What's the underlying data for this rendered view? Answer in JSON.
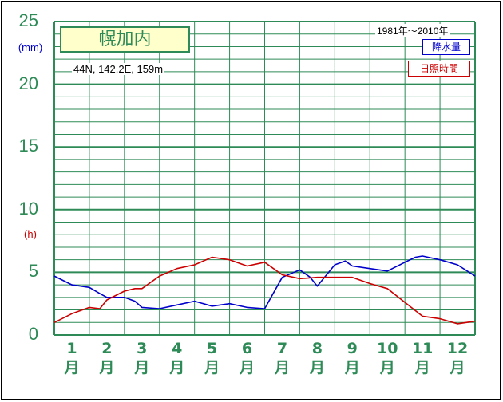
{
  "chart_data": {
    "type": "line",
    "station": "幌加内",
    "location": "44N, 142.2E, 159m",
    "period": "1981年〜2010年",
    "ylim": [
      0,
      25
    ],
    "y_ticks": [
      "0",
      "5",
      "10",
      "15",
      "20",
      "25"
    ],
    "unit_top": "(mm)",
    "unit_mid": "(h)",
    "months": [
      {
        "num": "1",
        "kanji": "月"
      },
      {
        "num": "2",
        "kanji": "月"
      },
      {
        "num": "3",
        "kanji": "月"
      },
      {
        "num": "4",
        "kanji": "月"
      },
      {
        "num": "5",
        "kanji": "月"
      },
      {
        "num": "6",
        "kanji": "月"
      },
      {
        "num": "7",
        "kanji": "月"
      },
      {
        "num": "8",
        "kanji": "月"
      },
      {
        "num": "9",
        "kanji": "月"
      },
      {
        "num": "10",
        "kanji": "月"
      },
      {
        "num": "11",
        "kanji": "月"
      },
      {
        "num": "12",
        "kanji": "月"
      }
    ],
    "x_range": [
      0.5,
      12.5
    ],
    "series": [
      {
        "name": "降水量",
        "color": "#0000cc",
        "x": [
          0.5,
          1.0,
          1.5,
          1.8,
          2.0,
          2.5,
          2.8,
          3.0,
          3.5,
          4.0,
          4.5,
          5.0,
          5.5,
          6.0,
          6.5,
          7.0,
          7.5,
          7.8,
          8.0,
          8.5,
          8.8,
          9.0,
          9.5,
          10.0,
          10.5,
          10.8,
          11.0,
          11.5,
          12.0,
          12.5
        ],
        "y": [
          4.7,
          4.0,
          3.8,
          3.3,
          3.0,
          3.0,
          2.7,
          2.2,
          2.1,
          2.4,
          2.7,
          2.3,
          2.5,
          2.2,
          2.1,
          4.6,
          5.2,
          4.6,
          3.9,
          5.6,
          5.9,
          5.5,
          5.3,
          5.1,
          5.8,
          6.2,
          6.3,
          6.0,
          5.6,
          4.7
        ]
      },
      {
        "name": "日照時間",
        "color": "#cc0000",
        "x": [
          0.5,
          1.0,
          1.5,
          1.8,
          2.0,
          2.5,
          2.8,
          3.0,
          3.5,
          4.0,
          4.5,
          5.0,
          5.5,
          6.0,
          6.5,
          7.0,
          7.5,
          8.0,
          8.5,
          9.0,
          9.5,
          10.0,
          10.5,
          11.0,
          11.5,
          12.0,
          12.5
        ],
        "y": [
          1.0,
          1.7,
          2.2,
          2.1,
          2.8,
          3.5,
          3.7,
          3.7,
          4.7,
          5.3,
          5.6,
          6.2,
          6.0,
          5.5,
          5.8,
          4.8,
          4.5,
          4.6,
          4.6,
          4.6,
          4.1,
          3.7,
          2.6,
          1.5,
          1.3,
          0.9,
          1.1
        ]
      }
    ]
  }
}
